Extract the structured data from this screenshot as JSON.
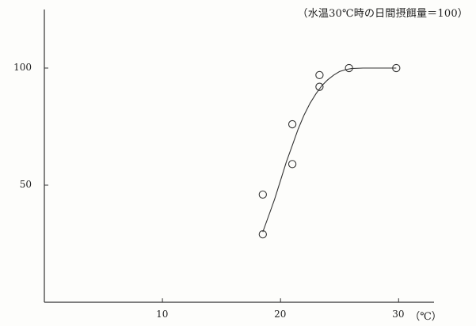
{
  "chart_data": {
    "type": "scatter",
    "note": "（水温30℃時の日間摂餌量＝100）",
    "x_unit": "（℃）",
    "xlim": [
      0,
      33
    ],
    "ylim": [
      0,
      125
    ],
    "x_ticks": [
      10,
      20,
      30
    ],
    "x_tick_labels": [
      "10",
      "20",
      "30"
    ],
    "y_ticks": [
      50,
      100
    ],
    "y_tick_labels": [
      "50",
      "100"
    ],
    "grid": false,
    "points": [
      {
        "x": 18.5,
        "y": 29
      },
      {
        "x": 18.5,
        "y": 46
      },
      {
        "x": 21.0,
        "y": 59
      },
      {
        "x": 21.0,
        "y": 76
      },
      {
        "x": 23.3,
        "y": 92
      },
      {
        "x": 23.3,
        "y": 97
      },
      {
        "x": 25.8,
        "y": 100
      },
      {
        "x": 29.8,
        "y": 100
      }
    ],
    "fit_curve": {
      "x": [
        18.5,
        19.0,
        19.5,
        20.0,
        20.5,
        21.0,
        21.5,
        22.0,
        22.5,
        23.0,
        23.5,
        24.0,
        24.5,
        25.0,
        25.5,
        26.0,
        27.0,
        28.0,
        29.0,
        29.8
      ],
      "y": [
        30,
        37,
        44,
        52,
        60,
        67,
        74,
        80,
        85,
        89,
        92.5,
        95,
        97,
        98.5,
        99.3,
        99.8,
        100,
        100,
        100,
        100
      ]
    }
  }
}
